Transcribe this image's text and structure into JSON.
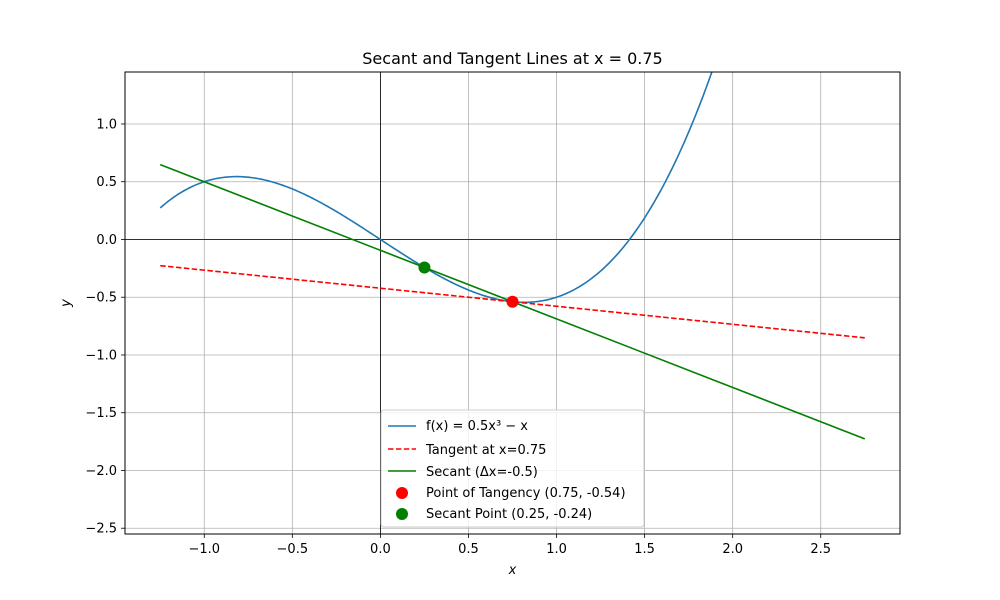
{
  "chart_data": {
    "type": "line",
    "title": "Secant and Tangent Lines at x = 0.75",
    "xlabel": "x",
    "ylabel": "y",
    "xlim": [
      -1.45,
      2.95
    ],
    "ylim": [
      -2.55,
      1.45
    ],
    "x_ticks": [
      -1.0,
      -0.5,
      0.0,
      0.5,
      1.0,
      1.5,
      2.0,
      2.5
    ],
    "x_tick_labels": [
      "−1.0",
      "−0.5",
      "0.0",
      "0.5",
      "1.0",
      "1.5",
      "2.0",
      "2.5"
    ],
    "y_ticks": [
      1.0,
      0.5,
      0.0,
      -0.5,
      -1.0,
      -1.5,
      -2.0,
      -2.5
    ],
    "y_tick_labels": [
      "1.0",
      "0.5",
      "0.0",
      "−0.5",
      "−1.0",
      "−1.5",
      "−2.0",
      "−2.5"
    ],
    "grid": true,
    "zero_lines": true,
    "legend_position": "lower-center",
    "series": [
      {
        "name": "f(x) = 0.5x³ − x",
        "kind": "curve",
        "function": "0.5*x^3 - x",
        "x_range": [
          -1.25,
          2.75
        ],
        "color": "#1f77b4",
        "dash": "solid"
      },
      {
        "name": "Tangent at x=0.75",
        "kind": "line",
        "x": [
          -1.25,
          2.75
        ],
        "y": [
          -0.2266,
          -0.8516
        ],
        "color": "#ff0000",
        "dash": "dashed"
      },
      {
        "name": "Secant (Δx=-0.5)",
        "kind": "line",
        "x": [
          -1.25,
          2.75
        ],
        "y": [
          0.6484,
          -1.7266
        ],
        "color": "#008000",
        "dash": "solid"
      }
    ],
    "points": [
      {
        "name": "Point of Tangency (0.75, -0.54)",
        "x": 0.75,
        "y": -0.5391,
        "color": "#ff0000"
      },
      {
        "name": "Secant Point (0.25, -0.24)",
        "x": 0.25,
        "y": -0.2422,
        "color": "#008000"
      }
    ]
  }
}
